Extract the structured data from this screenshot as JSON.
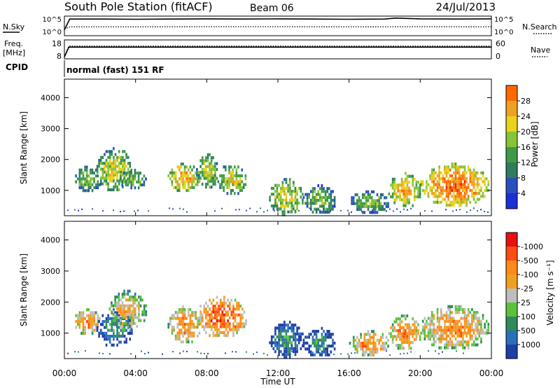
{
  "header": {
    "station": "South Pole Station (fitACF)",
    "beam": "Beam 06",
    "date": "24/Jul/2013"
  },
  "colors": {
    "power_scale": [
      "#1d2fd6",
      "#2a4fbf",
      "#2f7d5c",
      "#3e9a48",
      "#86c436",
      "#e8d21a",
      "#f0a020",
      "#ff6a00",
      "#f02000"
    ],
    "velocity_scale": [
      "#1e3fa8",
      "#2b6fb8",
      "#2f8a5c",
      "#5cc23a",
      "#bdbdbd",
      "#f0a020",
      "#ff8a1a",
      "#ff4a10",
      "#e81010"
    ],
    "ground_scatter": "#7f7f7f"
  },
  "chart_data": [
    {
      "type": "line",
      "name": "noise-panel",
      "left_label": "N.Sky",
      "left_ticks": [
        "10^5",
        "10^0"
      ],
      "right_ticks": [
        "10^5",
        "10^0"
      ],
      "right_label": "N.Search",
      "series": [
        {
          "style": "solid",
          "x_hours": [
            0,
            0.3,
            2,
            4,
            6,
            8,
            10,
            12,
            14,
            16,
            18,
            18.6,
            20,
            22,
            24
          ],
          "y_rel": [
            0.3,
            0.85,
            0.85,
            0.84,
            0.85,
            0.86,
            0.85,
            0.86,
            0.85,
            0.84,
            0.85,
            0.9,
            0.86,
            0.85,
            0.86
          ]
        },
        {
          "style": "dotted",
          "x_hours": [
            0,
            0.3,
            4,
            8,
            12,
            16,
            20,
            24
          ],
          "y_rel": [
            0.35,
            0.45,
            0.45,
            0.46,
            0.46,
            0.45,
            0.46,
            0.45
          ]
        }
      ]
    },
    {
      "type": "line",
      "name": "frequency-panel",
      "left_label_top": "Freq.",
      "left_label_bottom": "[MHz]",
      "left_ticks": [
        "18",
        "8"
      ],
      "right_ticks": [
        "60",
        "0"
      ],
      "right_label": "Nave",
      "series": [
        {
          "style": "solid",
          "x_hours": [
            0,
            0.25,
            24
          ],
          "y_rel": [
            0.1,
            0.62,
            0.62
          ]
        },
        {
          "style": "dotted",
          "x_hours": [
            0,
            0.25,
            24
          ],
          "y_rel": [
            0.1,
            0.67,
            0.67
          ]
        }
      ]
    },
    {
      "type": "text",
      "name": "cpid-panel",
      "label": "CPID",
      "value": "normal (fast) 151 RF"
    },
    {
      "type": "heatmap",
      "name": "power-panel",
      "ylabel": "Slant Range [km]",
      "yticks": [
        1000,
        2000,
        3000,
        4000
      ],
      "ylim": [
        180,
        4600
      ],
      "xlim_hours": [
        0,
        24
      ],
      "colorbar": {
        "label": "Power [dB]",
        "ticks": [
          "4",
          "8",
          "12",
          "16",
          "20",
          "24",
          "28"
        ]
      },
      "blobs": [
        {
          "t0": 0.5,
          "t1": 2.0,
          "r0": 1000,
          "r1": 1800,
          "level": 4
        },
        {
          "t0": 1.8,
          "t1": 3.8,
          "r0": 1000,
          "r1": 2400,
          "level": 5
        },
        {
          "t0": 3.0,
          "t1": 4.6,
          "r0": 1100,
          "r1": 1700,
          "level": 4
        },
        {
          "t0": 5.8,
          "t1": 7.6,
          "r0": 1000,
          "r1": 1900,
          "level": 6
        },
        {
          "t0": 7.4,
          "t1": 8.6,
          "r0": 1100,
          "r1": 2200,
          "level": 5
        },
        {
          "t0": 8.6,
          "t1": 10.2,
          "r0": 900,
          "r1": 1900,
          "level": 5
        },
        {
          "t0": 11.5,
          "t1": 13.4,
          "r0": 250,
          "r1": 1400,
          "level": 5
        },
        {
          "t0": 13.4,
          "t1": 15.2,
          "r0": 250,
          "r1": 1200,
          "level": 4
        },
        {
          "t0": 16.0,
          "t1": 18.2,
          "r0": 300,
          "r1": 1000,
          "level": 4
        },
        {
          "t0": 18.2,
          "t1": 20.0,
          "r0": 500,
          "r1": 1600,
          "level": 6
        },
        {
          "t0": 20.0,
          "t1": 23.8,
          "r0": 500,
          "r1": 1900,
          "level": 7
        }
      ]
    },
    {
      "type": "heatmap",
      "name": "velocity-panel",
      "ylabel": "Slant Range [km]",
      "yticks": [
        1000,
        2000,
        3000,
        4000
      ],
      "ylim": [
        180,
        4600
      ],
      "xlim_hours": [
        0,
        24
      ],
      "xticks": [
        "00:00",
        "04:00",
        "08:00",
        "12:00",
        "16:00",
        "20:00",
        "00:00"
      ],
      "xlabel": "Time UT",
      "colorbar": {
        "label": "Velocity [m s⁻¹]",
        "ticks": [
          "1000",
          "500",
          "100",
          "25",
          "-25",
          "-100",
          "-500",
          "-1000"
        ]
      },
      "blobs": [
        {
          "t0": 0.5,
          "t1": 2.0,
          "r0": 1000,
          "r1": 1800,
          "level": 6
        },
        {
          "t0": 1.8,
          "t1": 3.8,
          "r0": 600,
          "r1": 1800,
          "level": 2
        },
        {
          "t0": 2.5,
          "t1": 4.6,
          "r0": 1100,
          "r1": 2400,
          "level": 5
        },
        {
          "t0": 5.8,
          "t1": 7.6,
          "r0": 700,
          "r1": 1900,
          "level": 6
        },
        {
          "t0": 7.4,
          "t1": 10.2,
          "r0": 900,
          "r1": 2200,
          "level": 7
        },
        {
          "t0": 11.5,
          "t1": 13.4,
          "r0": 250,
          "r1": 1400,
          "level": 2
        },
        {
          "t0": 13.4,
          "t1": 15.2,
          "r0": 250,
          "r1": 1200,
          "level": 2
        },
        {
          "t0": 16.0,
          "t1": 18.2,
          "r0": 300,
          "r1": 1100,
          "level": 6
        },
        {
          "t0": 18.2,
          "t1": 20.0,
          "r0": 500,
          "r1": 1600,
          "level": 6
        },
        {
          "t0": 20.0,
          "t1": 23.8,
          "r0": 500,
          "r1": 1900,
          "level": 6
        }
      ]
    }
  ]
}
